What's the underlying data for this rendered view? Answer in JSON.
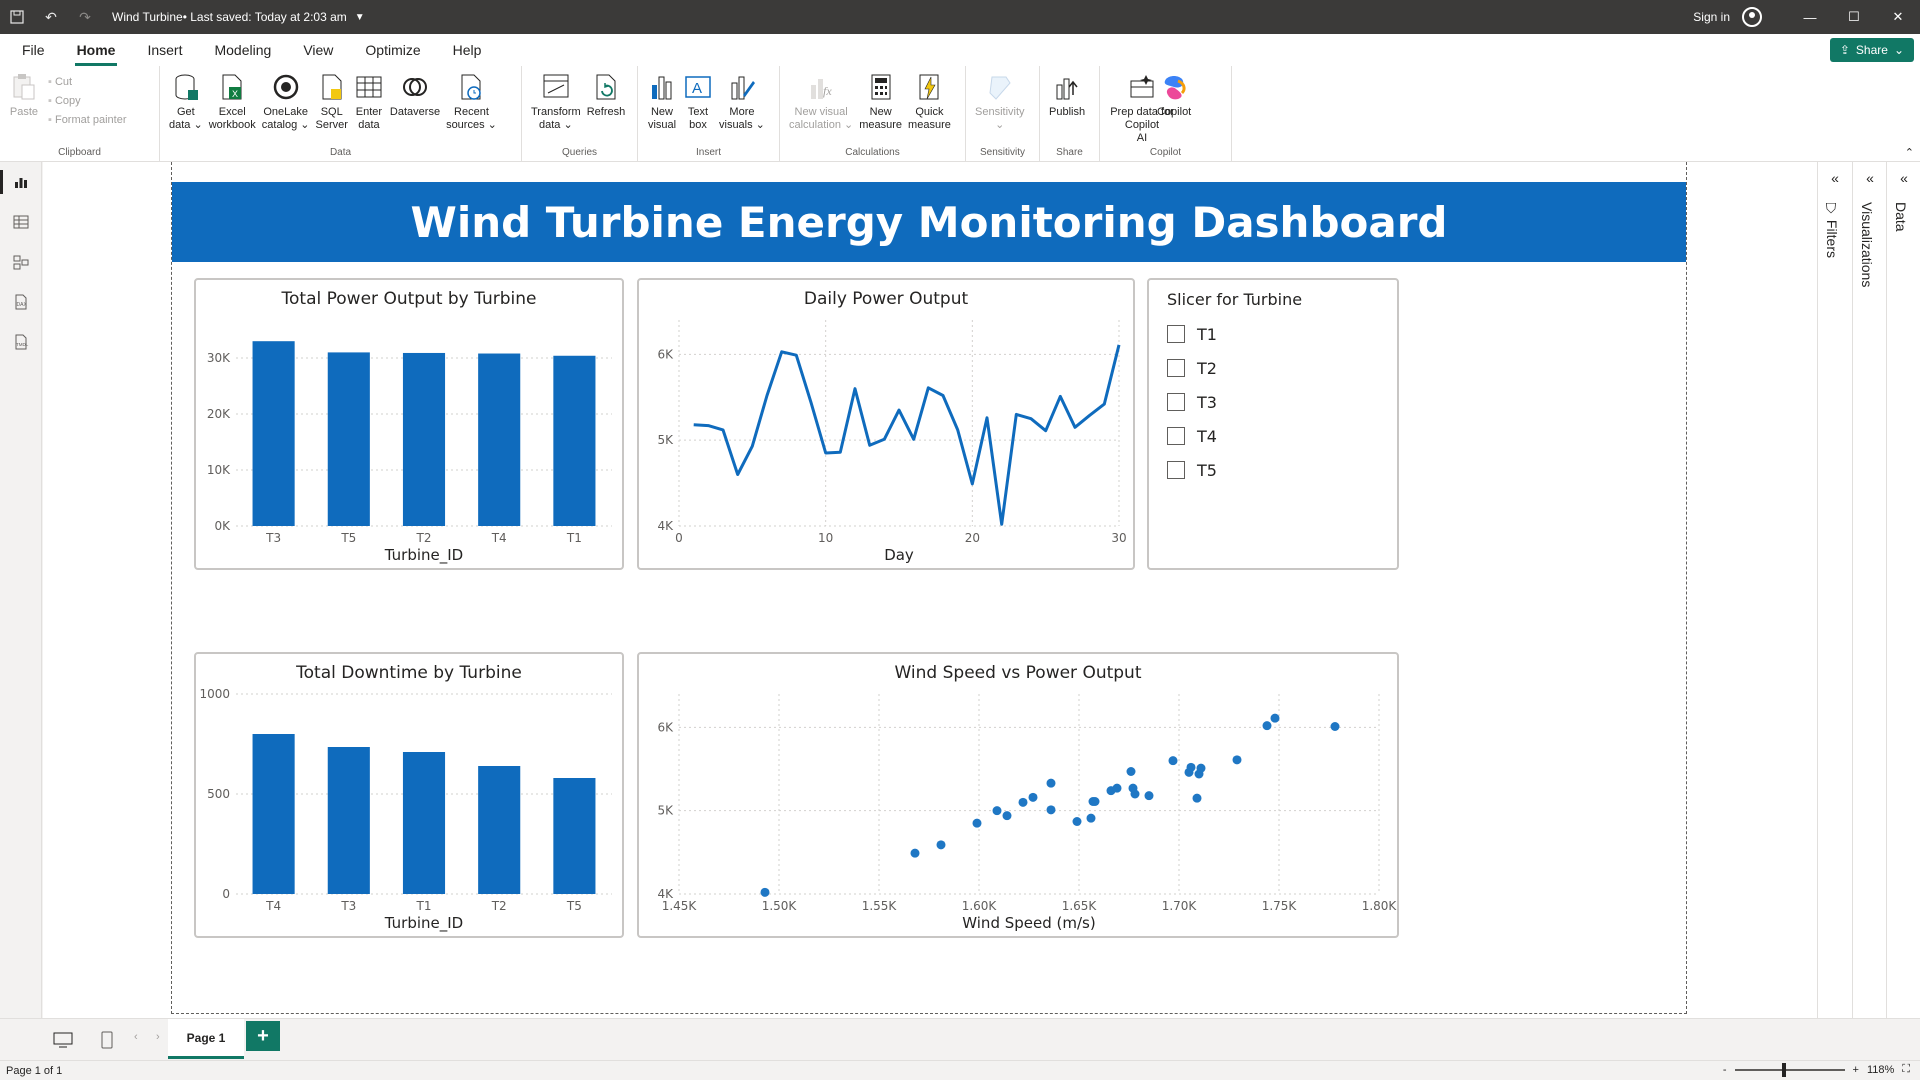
{
  "titlebar": {
    "doc_title": "Wind Turbine",
    "save_status": " • Last saved: Today at 2:03 am",
    "sign_in": "Sign in"
  },
  "menu": {
    "items": [
      "File",
      "Home",
      "Insert",
      "Modeling",
      "View",
      "Optimize",
      "Help"
    ],
    "active": "Home",
    "share": "Share"
  },
  "ribbon": {
    "clipboard": {
      "paste": "Paste",
      "cut": "Cut",
      "copy": "Copy",
      "format_painter": "Format painter",
      "label": "Clipboard"
    },
    "data": {
      "label": "Data",
      "buttons": [
        {
          "label": "Get\ndata ⌄",
          "icon": "database-icon"
        },
        {
          "label": "Excel\nworkbook",
          "icon": "excel-icon"
        },
        {
          "label": "OneLake\ncatalog ⌄",
          "icon": "onelake-icon"
        },
        {
          "label": "SQL\nServer",
          "icon": "sql-server-icon"
        },
        {
          "label": "Enter\ndata",
          "icon": "table-icon"
        },
        {
          "label": "Dataverse",
          "icon": "dataverse-icon"
        },
        {
          "label": "Recent\nsources ⌄",
          "icon": "recent-sources-icon"
        }
      ]
    },
    "queries": {
      "label": "Queries",
      "buttons": [
        {
          "label": "Transform\ndata ⌄",
          "icon": "transform-icon"
        },
        {
          "label": "Refresh",
          "icon": "refresh-icon"
        }
      ]
    },
    "insert": {
      "label": "Insert",
      "buttons": [
        {
          "label": "New\nvisual",
          "icon": "new-visual-icon"
        },
        {
          "label": "Text\nbox",
          "icon": "text-box-icon"
        },
        {
          "label": "More\nvisuals ⌄",
          "icon": "more-visuals-icon"
        }
      ]
    },
    "calculations": {
      "label": "Calculations",
      "buttons": [
        {
          "label": "New visual\ncalculation ⌄",
          "icon": "visual-calc-icon",
          "disabled": true
        },
        {
          "label": "New\nmeasure",
          "icon": "calculator-icon"
        },
        {
          "label": "Quick\nmeasure",
          "icon": "quick-measure-icon"
        }
      ]
    },
    "sensitivity": {
      "label": "Sensitivity",
      "button": "Sensitivity\n⌄"
    },
    "share": {
      "label": "Share",
      "button": "Publish"
    },
    "copilot": {
      "label": "Copilot",
      "button": "Prep data for Copilot\nAI",
      "copilot_button": "Copilot"
    }
  },
  "report": {
    "banner_title": "Wind Turbine Energy Monitoring Dashboard"
  },
  "colors": {
    "accent": "#117865",
    "bar": "#0f6bbd",
    "banner": "#0f6bbd"
  },
  "chart_data": [
    {
      "id": "power",
      "type": "bar",
      "title": "Total Power Output by Turbine",
      "categories": [
        "T3",
        "T5",
        "T2",
        "T4",
        "T1"
      ],
      "values": [
        33000,
        31000,
        30900,
        30800,
        30400
      ],
      "xlabel": "Turbine_ID",
      "ylim": [
        0,
        35000
      ],
      "yticks": [
        0,
        10000,
        20000,
        30000
      ],
      "ytick_labels": [
        "0K",
        "10K",
        "20K",
        "30K"
      ],
      "grid": true
    },
    {
      "id": "daily",
      "type": "line",
      "title": "Daily Power Output",
      "x": [
        1,
        2,
        3,
        4,
        5,
        6,
        7,
        8,
        9,
        10,
        11,
        12,
        13,
        14,
        15,
        16,
        17,
        18,
        19,
        20,
        21,
        22,
        23,
        24,
        25,
        26,
        27,
        28,
        29,
        30
      ],
      "values": [
        5180,
        5170,
        5120,
        4600,
        4930,
        5520,
        6030,
        5990,
        5440,
        4850,
        4860,
        5600,
        4940,
        5010,
        5350,
        5010,
        5610,
        5520,
        5120,
        4490,
        5260,
        4020,
        5300,
        5250,
        5110,
        5510,
        5150,
        5290,
        5420,
        6110
      ],
      "xlabel": "Day",
      "xlim": [
        0,
        30
      ],
      "ylim": [
        4000,
        6400
      ],
      "xticks": [
        0,
        10,
        20,
        30
      ],
      "yticks": [
        4000,
        5000,
        6000
      ],
      "ytick_labels": [
        "4K",
        "5K",
        "6K"
      ],
      "grid": true
    },
    {
      "id": "downtime",
      "type": "bar",
      "title": "Total Downtime by Turbine",
      "categories": [
        "T4",
        "T3",
        "T1",
        "T2",
        "T5"
      ],
      "values": [
        800,
        735,
        710,
        640,
        580
      ],
      "xlabel": "Turbine_ID",
      "ylim": [
        0,
        1000
      ],
      "yticks": [
        0,
        500,
        1000
      ],
      "ytick_labels": [
        "0",
        "500",
        "1000"
      ],
      "grid": true
    },
    {
      "id": "scatter",
      "type": "scatter",
      "title": "Wind Speed vs Power Output",
      "x": [
        1493,
        1568,
        1581,
        1599,
        1609,
        1614,
        1622,
        1627,
        1636,
        1636,
        1649,
        1656,
        1657,
        1658,
        1666,
        1669,
        1676,
        1677,
        1678,
        1685,
        1697,
        1705,
        1706,
        1709,
        1710,
        1711,
        1729,
        1744,
        1748,
        1778
      ],
      "values": [
        4020,
        4490,
        4590,
        4850,
        5000,
        4940,
        5100,
        5160,
        5330,
        5010,
        4870,
        4910,
        5110,
        5110,
        5240,
        5270,
        5470,
        5270,
        5200,
        5180,
        5600,
        5460,
        5520,
        5150,
        5440,
        5510,
        5610,
        6020,
        6110,
        6010
      ],
      "xlabel": "Wind Speed (m/s)",
      "xlim": [
        1450,
        1800
      ],
      "ylim": [
        4000,
        6400
      ],
      "xticks": [
        1450,
        1500,
        1550,
        1600,
        1650,
        1700,
        1750,
        1800
      ],
      "xtick_labels": [
        "1.45K",
        "1.50K",
        "1.55K",
        "1.60K",
        "1.65K",
        "1.70K",
        "1.75K",
        "1.80K"
      ],
      "yticks": [
        4000,
        5000,
        6000
      ],
      "ytick_labels": [
        "4K",
        "5K",
        "6K"
      ],
      "grid": true
    }
  ],
  "slicer": {
    "title": "Slicer for Turbine",
    "items": [
      "T1",
      "T2",
      "T3",
      "T4",
      "T5"
    ]
  },
  "panes": {
    "filters": "Filters",
    "visualizations": "Visualizations",
    "data": "Data"
  },
  "pages": {
    "tab": "Page 1",
    "add": "+"
  },
  "status": {
    "page_info": "Page 1 of 1",
    "zoom": "118%",
    "zoom_fraction": 0.45
  }
}
